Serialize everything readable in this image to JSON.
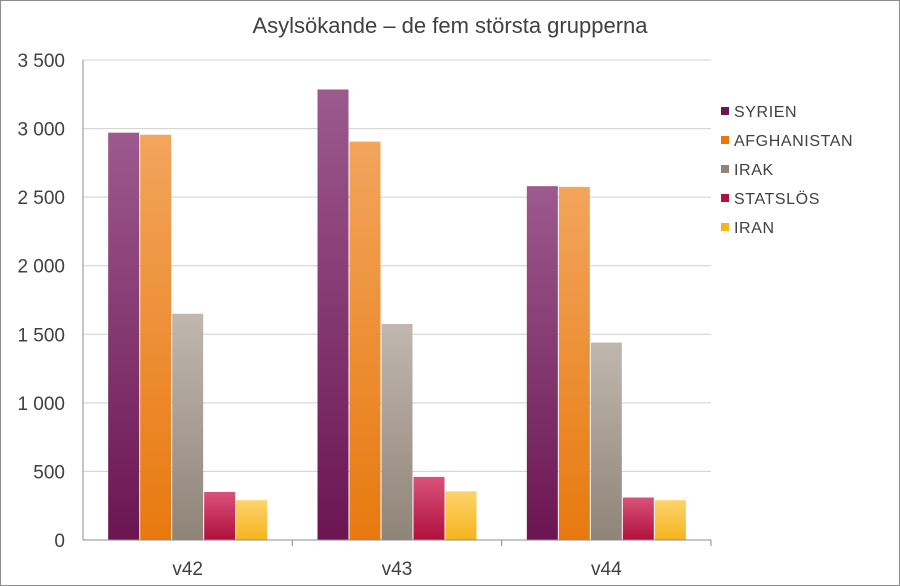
{
  "chart_data": {
    "type": "bar",
    "title": "Asylsökande – de fem största grupperna",
    "xlabel": "",
    "ylabel": "",
    "categories": [
      "v42",
      "v43",
      "v44"
    ],
    "ylim": [
      0,
      3500
    ],
    "yticks": [
      0,
      500,
      1000,
      1500,
      2000,
      2500,
      3000,
      3500
    ],
    "ytick_labels": [
      "0",
      "500",
      "1 000",
      "1 500",
      "2 000",
      "2 500",
      "3 000",
      "3 500"
    ],
    "grid": true,
    "legend_position": "right",
    "series": [
      {
        "name": "SYRIEN",
        "values": [
          2970,
          3285,
          2580
        ],
        "color": "#6b1552",
        "color_light": "#9c5a8e"
      },
      {
        "name": "AFGHANISTAN",
        "values": [
          2955,
          2905,
          2575
        ],
        "color": "#e8790f",
        "color_light": "#f2a55c"
      },
      {
        "name": "IRAK",
        "values": [
          1650,
          1575,
          1440
        ],
        "color": "#8f8478",
        "color_light": "#c0b7ae"
      },
      {
        "name": "STATSLÖS",
        "values": [
          350,
          460,
          310
        ],
        "color": "#b0103d",
        "color_light": "#d9527a"
      },
      {
        "name": "IRAN",
        "values": [
          290,
          355,
          290
        ],
        "color": "#f6b41e",
        "color_light": "#fcd36a"
      }
    ]
  }
}
